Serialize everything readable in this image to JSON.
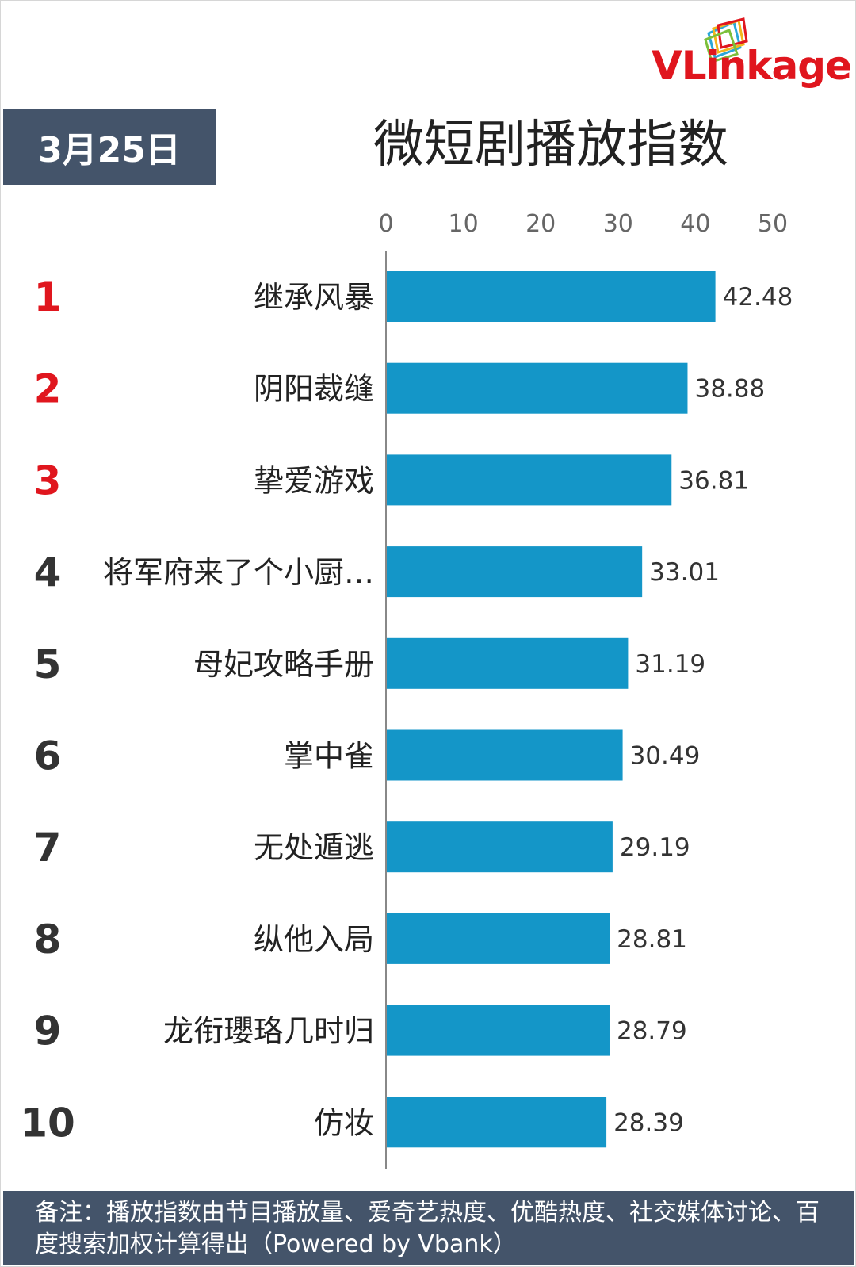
{
  "logo": {
    "text_v": "VL",
    "text_i": "i",
    "text_rest": "nkage",
    "name": "vlinkage-logo"
  },
  "date_label": "3月25日",
  "title": "微短剧播放指数",
  "footnote": "备注：播放指数由节目播放量、爱奇艺热度、优酷热度、社交媒体讨论、百度搜索加权计算得出（Powered by Vbank）",
  "colors": {
    "bar": "#1496c8",
    "rank_top": "#e0161e",
    "rank_other": "#333333",
    "header_bg": "#44546a",
    "logo_red": "#e0161e"
  },
  "chart_data": {
    "type": "bar",
    "orientation": "horizontal",
    "xlim": [
      0,
      50
    ],
    "x_ticks": [
      "0",
      "10",
      "20",
      "30",
      "40",
      "50"
    ],
    "x_tick_values": [
      0,
      10,
      20,
      30,
      40,
      50
    ],
    "ranks": [
      "1",
      "2",
      "3",
      "4",
      "5",
      "6",
      "7",
      "8",
      "9",
      "10"
    ],
    "categories": [
      "继承风暴",
      "阴阳裁缝",
      "挚爱游戏",
      "将军府来了个小厨…",
      "母妃攻略手册",
      "掌中雀",
      "无处遁逃",
      "纵他入局",
      "龙衔瓔珞几时归",
      "仿妆"
    ],
    "values": [
      42.48,
      38.88,
      36.81,
      33.01,
      31.19,
      30.49,
      29.19,
      28.81,
      28.79,
      28.39
    ],
    "value_labels": [
      "42.48",
      "38.88",
      "36.81",
      "33.01",
      "31.19",
      "30.49",
      "29.19",
      "28.81",
      "28.79",
      "28.39"
    ],
    "grid": false
  }
}
